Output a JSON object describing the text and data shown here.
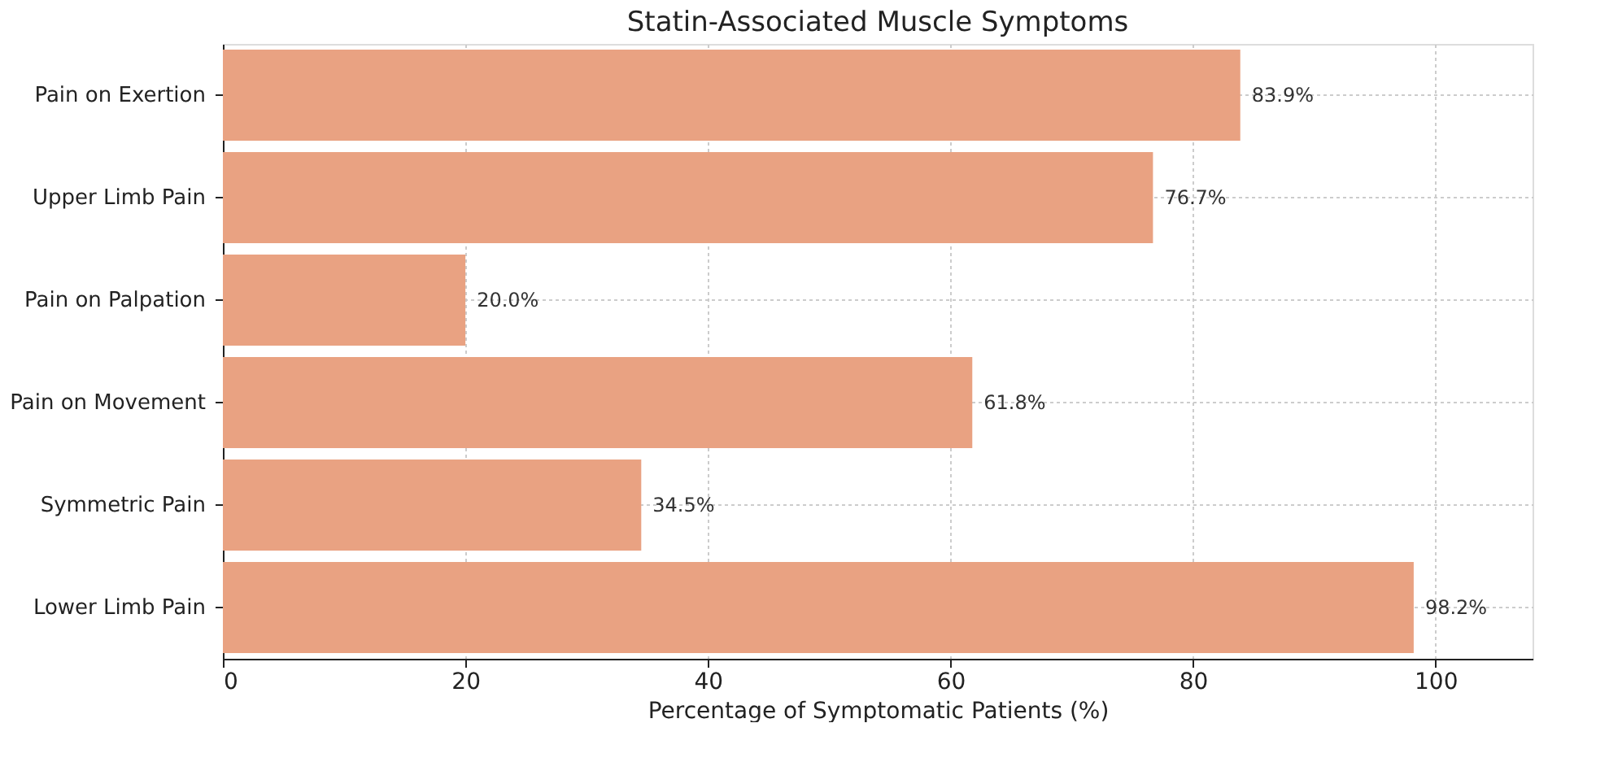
{
  "chart_data": {
    "type": "bar",
    "orientation": "horizontal",
    "title": "Statin-Associated Muscle Symptoms",
    "xlabel": "Percentage of Symptomatic Patients (%)",
    "categories": [
      "Pain on Exertion",
      "Upper Limb Pain",
      "Pain on Palpation",
      "Pain on Movement",
      "Symmetric Pain",
      "Lower Limb Pain"
    ],
    "values": [
      83.9,
      76.7,
      20.0,
      61.8,
      34.5,
      98.2
    ],
    "value_labels": [
      "83.9%",
      "76.7%",
      "20.0%",
      "61.8%",
      "34.5%",
      "98.2%"
    ],
    "color": "#e9a282",
    "xlim": [
      0,
      108
    ],
    "xticks": [
      0,
      20,
      40,
      60,
      80,
      100
    ],
    "grid": true
  }
}
